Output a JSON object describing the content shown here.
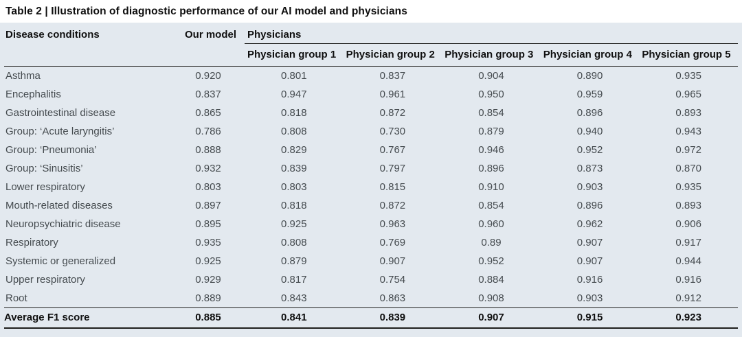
{
  "title": "Table 2 | Illustration of diagnostic performance of our AI model and physicians",
  "colors": {
    "caption_background": "#ffffff",
    "table_background": "#e3e9ef",
    "rule_color": "#1d1d1b",
    "heading_text": "#101010",
    "body_text": "#454b4f"
  },
  "table": {
    "columns": {
      "disease": "Disease conditions",
      "our_model": "Our model",
      "physicians_group": "Physicians",
      "groups": [
        "Physician group 1",
        "Physician group 2",
        "Physician group 3",
        "Physician group 4",
        "Physician group 5"
      ]
    },
    "rows": [
      {
        "name": "Asthma",
        "values": [
          "0.920",
          "0.801",
          "0.837",
          "0.904",
          "0.890",
          "0.935"
        ]
      },
      {
        "name": "Encephalitis",
        "values": [
          "0.837",
          "0.947",
          "0.961",
          "0.950",
          "0.959",
          "0.965"
        ]
      },
      {
        "name": "Gastrointestinal disease",
        "values": [
          "0.865",
          "0.818",
          "0.872",
          "0.854",
          "0.896",
          "0.893"
        ]
      },
      {
        "name": "Group: ‘Acute laryngitis’",
        "values": [
          "0.786",
          "0.808",
          "0.730",
          "0.879",
          "0.940",
          "0.943"
        ]
      },
      {
        "name": "Group: ‘Pneumonia’",
        "values": [
          "0.888",
          "0.829",
          "0.767",
          "0.946",
          "0.952",
          "0.972"
        ]
      },
      {
        "name": "Group: ‘Sinusitis’",
        "values": [
          "0.932",
          "0.839",
          "0.797",
          "0.896",
          "0.873",
          "0.870"
        ]
      },
      {
        "name": "Lower respiratory",
        "values": [
          "0.803",
          "0.803",
          "0.815",
          "0.910",
          "0.903",
          "0.935"
        ]
      },
      {
        "name": "Mouth-related diseases",
        "values": [
          "0.897",
          "0.818",
          "0.872",
          "0.854",
          "0.896",
          "0.893"
        ]
      },
      {
        "name": "Neuropsychiatric disease",
        "values": [
          "0.895",
          "0.925",
          "0.963",
          "0.960",
          "0.962",
          "0.906"
        ]
      },
      {
        "name": "Respiratory",
        "values": [
          "0.935",
          "0.808",
          "0.769",
          "0.89",
          "0.907",
          "0.917"
        ]
      },
      {
        "name": "Systemic or generalized",
        "values": [
          "0.925",
          "0.879",
          "0.907",
          "0.952",
          "0.907",
          "0.944"
        ]
      },
      {
        "name": "Upper respiratory",
        "values": [
          "0.929",
          "0.817",
          "0.754",
          "0.884",
          "0.916",
          "0.916"
        ]
      },
      {
        "name": "Root",
        "values": [
          "0.889",
          "0.843",
          "0.863",
          "0.908",
          "0.903",
          "0.912"
        ]
      }
    ],
    "average_row": {
      "label": "Average F1 score",
      "values": [
        "0.885",
        "0.841",
        "0.839",
        "0.907",
        "0.915",
        "0.923"
      ]
    }
  }
}
